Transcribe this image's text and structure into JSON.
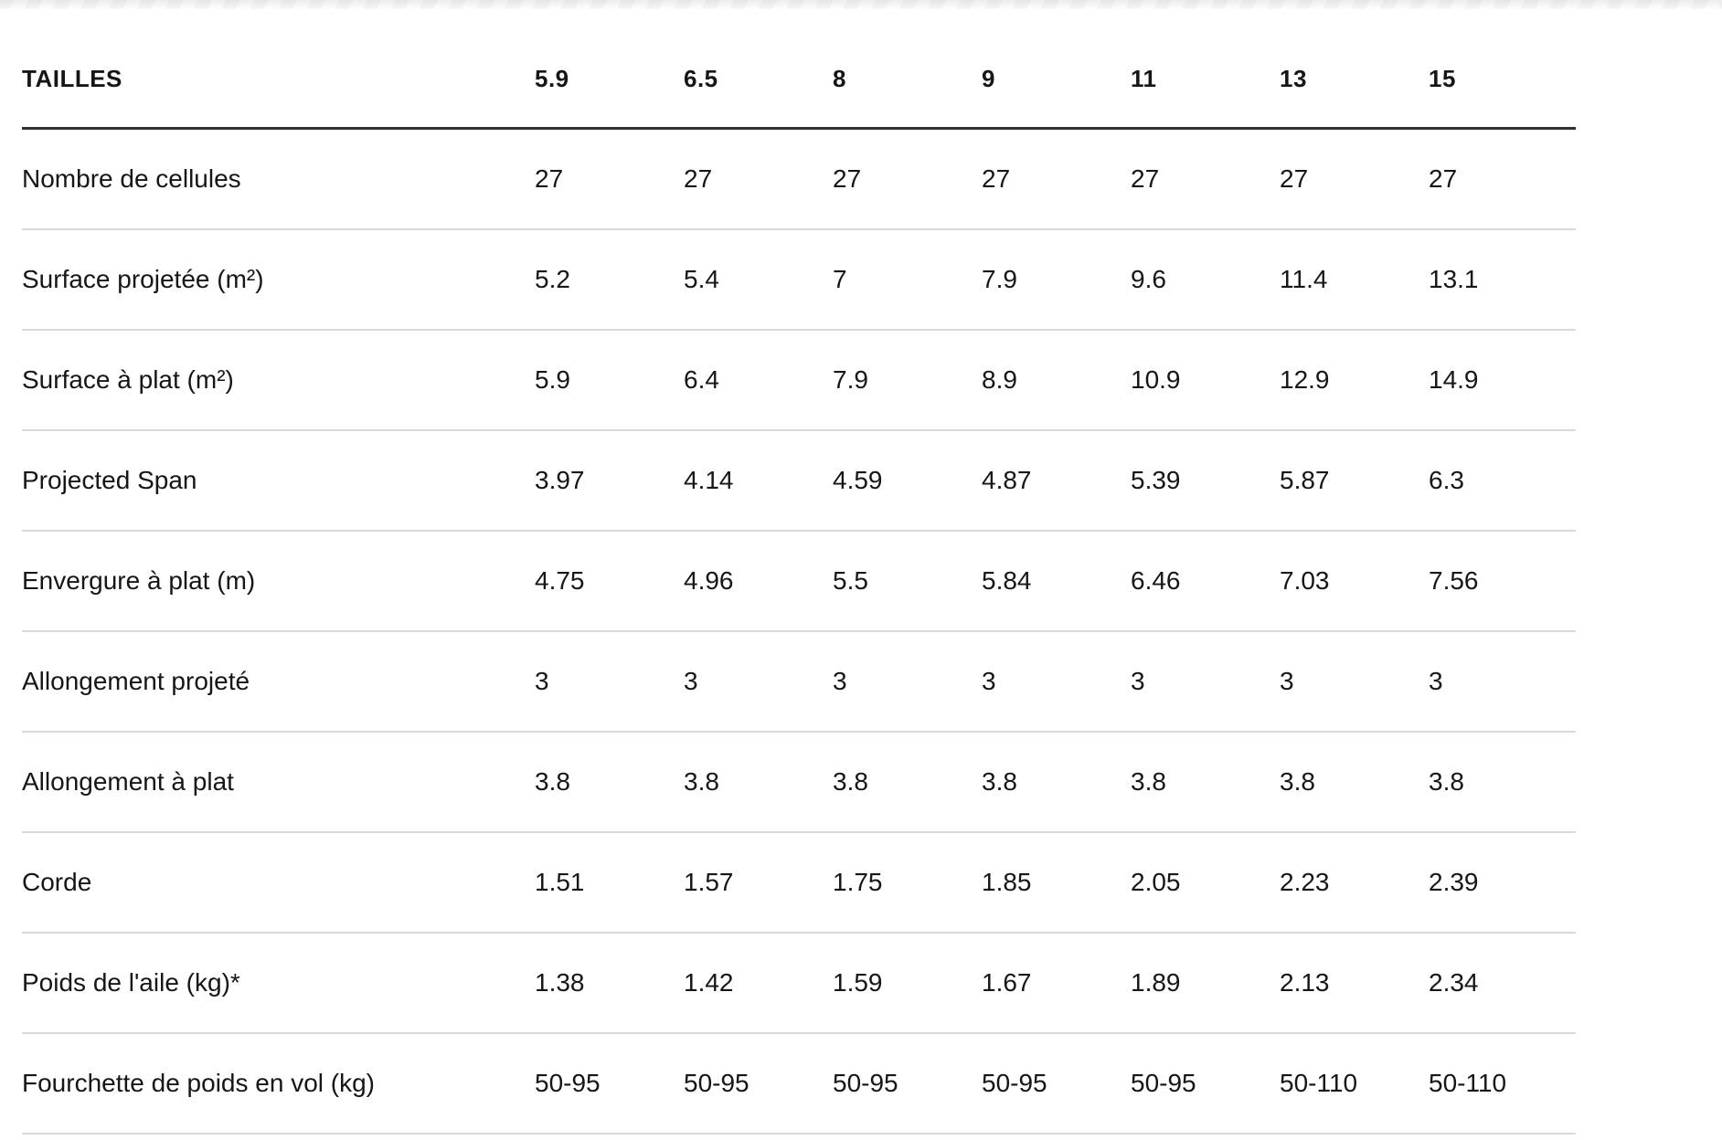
{
  "table": {
    "header": {
      "label": "TAILLES",
      "sizes": [
        "5.9",
        "6.5",
        "8",
        "9",
        "11",
        "13",
        "15"
      ]
    },
    "rows": [
      {
        "label": "Nombre de cellules",
        "values": [
          "27",
          "27",
          "27",
          "27",
          "27",
          "27",
          "27"
        ]
      },
      {
        "label": "Surface projetée (m²)",
        "values": [
          "5.2",
          "5.4",
          "7",
          "7.9",
          "9.6",
          "11.4",
          "13.1"
        ]
      },
      {
        "label": "Surface à plat (m²)",
        "values": [
          "5.9",
          "6.4",
          "7.9",
          "8.9",
          "10.9",
          "12.9",
          "14.9"
        ]
      },
      {
        "label": "Projected Span",
        "values": [
          "3.97",
          "4.14",
          "4.59",
          "4.87",
          "5.39",
          "5.87",
          "6.3"
        ]
      },
      {
        "label": "Envergure à plat (m)",
        "values": [
          "4.75",
          "4.96",
          "5.5",
          "5.84",
          "6.46",
          "7.03",
          "7.56"
        ]
      },
      {
        "label": "Allongement projeté",
        "values": [
          "3",
          "3",
          "3",
          "3",
          "3",
          "3",
          "3"
        ]
      },
      {
        "label": "Allongement à plat",
        "values": [
          "3.8",
          "3.8",
          "3.8",
          "3.8",
          "3.8",
          "3.8",
          "3.8"
        ]
      },
      {
        "label": "Corde",
        "values": [
          "1.51",
          "1.57",
          "1.75",
          "1.85",
          "2.05",
          "2.23",
          "2.39"
        ]
      },
      {
        "label": "Poids de l'aile (kg)*",
        "values": [
          "1.38",
          "1.42",
          "1.59",
          "1.67",
          "1.89",
          "2.13",
          "2.34"
        ]
      },
      {
        "label": "Fourchette de poids en vol (kg)",
        "values": [
          "50-95",
          "50-95",
          "50-95",
          "50-95",
          "50-95",
          "50-110",
          "50-110"
        ]
      }
    ],
    "colors": {
      "text": "#161616",
      "header_rule": "#2f2f2f",
      "row_rule": "#d9d9d9"
    }
  },
  "chart_data": {
    "type": "table",
    "title": "TAILLES",
    "columns": [
      "TAILLES",
      "5.9",
      "6.5",
      "8",
      "9",
      "11",
      "13",
      "15"
    ],
    "rows": [
      [
        "Nombre de cellules",
        "27",
        "27",
        "27",
        "27",
        "27",
        "27",
        "27"
      ],
      [
        "Surface projetée (m²)",
        "5.2",
        "5.4",
        "7",
        "7.9",
        "9.6",
        "11.4",
        "13.1"
      ],
      [
        "Surface à plat (m²)",
        "5.9",
        "6.4",
        "7.9",
        "8.9",
        "10.9",
        "12.9",
        "14.9"
      ],
      [
        "Projected Span",
        "3.97",
        "4.14",
        "4.59",
        "4.87",
        "5.39",
        "5.87",
        "6.3"
      ],
      [
        "Envergure à plat (m)",
        "4.75",
        "4.96",
        "5.5",
        "5.84",
        "6.46",
        "7.03",
        "7.56"
      ],
      [
        "Allongement projeté",
        "3",
        "3",
        "3",
        "3",
        "3",
        "3",
        "3"
      ],
      [
        "Allongement à plat",
        "3.8",
        "3.8",
        "3.8",
        "3.8",
        "3.8",
        "3.8",
        "3.8"
      ],
      [
        "Corde",
        "1.51",
        "1.57",
        "1.75",
        "1.85",
        "2.05",
        "2.23",
        "2.39"
      ],
      [
        "Poids de l'aile (kg)*",
        "1.38",
        "1.42",
        "1.59",
        "1.67",
        "1.89",
        "2.13",
        "2.34"
      ],
      [
        "Fourchette de poids en vol (kg)",
        "50-95",
        "50-95",
        "50-95",
        "50-95",
        "50-95",
        "50-110",
        "50-110"
      ]
    ]
  }
}
